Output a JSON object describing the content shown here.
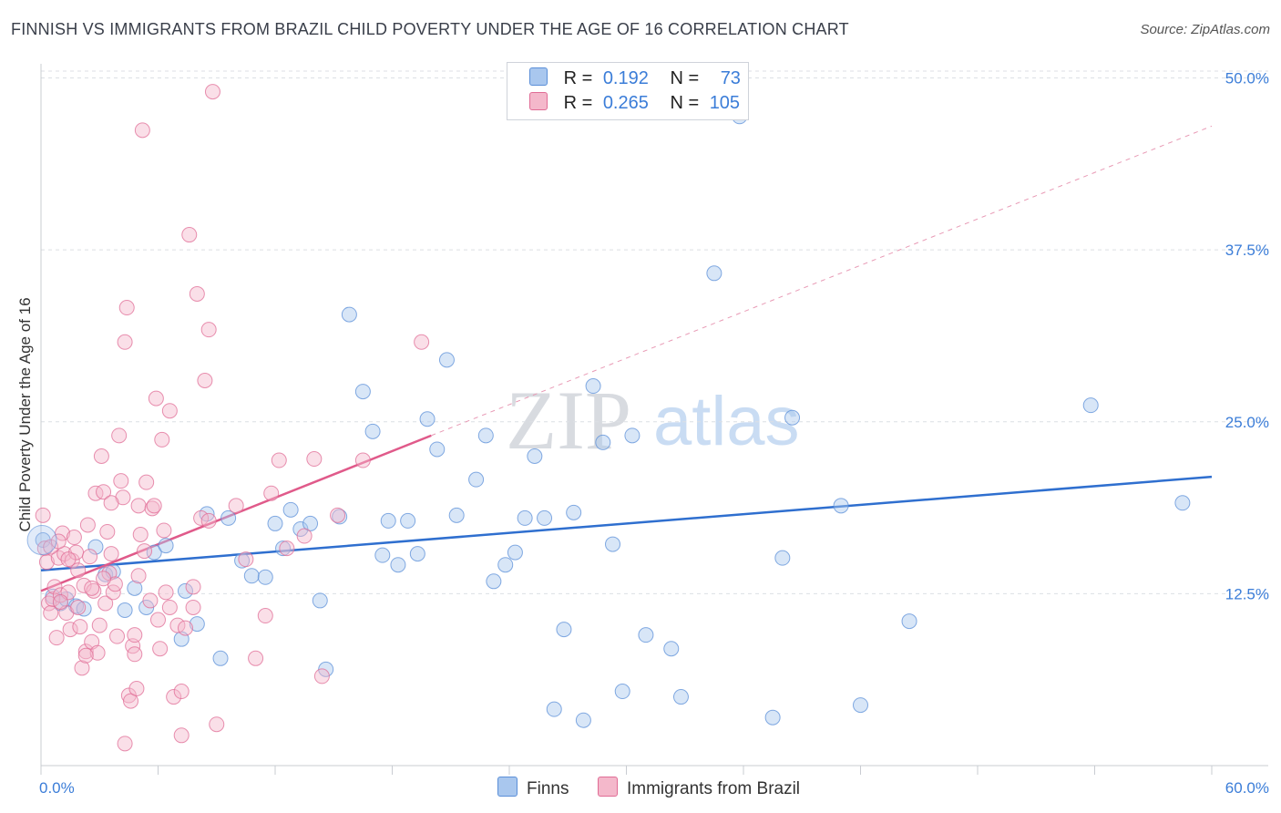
{
  "title": "FINNISH VS IMMIGRANTS FROM BRAZIL CHILD POVERTY UNDER THE AGE OF 16 CORRELATION CHART",
  "source": "Source: ZipAtlas.com",
  "legend": {
    "finns": {
      "r_label": "R =",
      "r_value": "0.192",
      "n_label": "N =",
      "n_value": "73"
    },
    "brazil": {
      "r_label": "R =",
      "r_value": "0.265",
      "n_label": "N =",
      "n_value": "105"
    }
  },
  "bottom_legend": {
    "finns": "Finns",
    "brazil": "Immigrants from Brazil"
  },
  "watermark": {
    "zip": "ZIP",
    "atlas": "atlas"
  },
  "colors": {
    "finns": "#5b8fd8",
    "finns_fill": "#a9c7ee",
    "brazil": "#e06c95",
    "brazil_fill": "#f4b8cb",
    "accent": "#3b7dd8"
  },
  "chart_data": {
    "type": "scatter",
    "title": "FINNISH VS IMMIGRANTS FROM BRAZIL CHILD POVERTY UNDER THE AGE OF 16 CORRELATION CHART",
    "xlabel": "",
    "ylabel": "Child Poverty Under the Age of 16",
    "xlim": [
      0,
      60
    ],
    "ylim": [
      0,
      50.5
    ],
    "x_tick_labels": [
      "0.0%",
      "60.0%"
    ],
    "y_ticks": [
      12.5,
      25.0,
      37.5,
      50.0
    ],
    "y_tick_labels": [
      "12.5%",
      "25.0%",
      "37.5%",
      "50.0%"
    ],
    "grid": true,
    "series": [
      {
        "name": "Finns",
        "trend": {
          "x": [
            0,
            60
          ],
          "y": [
            14.2,
            21.0
          ],
          "dashed_extension": false
        },
        "points": [
          [
            0.1,
            16.4
          ],
          [
            0.6,
            12.3
          ],
          [
            1.0,
            11.8
          ],
          [
            1.3,
            12.1
          ],
          [
            1.8,
            11.6
          ],
          [
            2.2,
            11.4
          ],
          [
            2.8,
            15.9
          ],
          [
            3.3,
            13.9
          ],
          [
            3.7,
            14.1
          ],
          [
            4.3,
            11.3
          ],
          [
            4.8,
            12.9
          ],
          [
            5.4,
            11.5
          ],
          [
            5.8,
            15.5
          ],
          [
            6.4,
            16.0
          ],
          [
            7.2,
            9.2
          ],
          [
            7.4,
            12.7
          ],
          [
            8.0,
            10.3
          ],
          [
            8.5,
            18.3
          ],
          [
            9.2,
            7.8
          ],
          [
            9.6,
            18.0
          ],
          [
            10.3,
            14.9
          ],
          [
            10.8,
            13.8
          ],
          [
            11.5,
            13.7
          ],
          [
            12.0,
            17.6
          ],
          [
            12.4,
            15.8
          ],
          [
            12.8,
            18.6
          ],
          [
            13.3,
            17.2
          ],
          [
            13.8,
            17.6
          ],
          [
            14.3,
            12.0
          ],
          [
            14.6,
            7.0
          ],
          [
            15.3,
            18.1
          ],
          [
            15.8,
            32.8
          ],
          [
            16.5,
            27.2
          ],
          [
            17.0,
            24.3
          ],
          [
            17.5,
            15.3
          ],
          [
            17.8,
            17.8
          ],
          [
            18.3,
            14.6
          ],
          [
            18.8,
            17.8
          ],
          [
            19.3,
            15.4
          ],
          [
            19.8,
            25.2
          ],
          [
            20.3,
            23.0
          ],
          [
            20.8,
            29.5
          ],
          [
            21.3,
            18.2
          ],
          [
            22.3,
            20.8
          ],
          [
            22.8,
            24.0
          ],
          [
            23.2,
            13.4
          ],
          [
            23.8,
            14.6
          ],
          [
            24.3,
            15.5
          ],
          [
            24.8,
            18.0
          ],
          [
            25.3,
            22.5
          ],
          [
            25.8,
            18.0
          ],
          [
            26.3,
            4.1
          ],
          [
            26.8,
            9.9
          ],
          [
            27.3,
            18.4
          ],
          [
            27.8,
            3.3
          ],
          [
            28.3,
            27.6
          ],
          [
            28.8,
            23.5
          ],
          [
            29.3,
            16.1
          ],
          [
            29.8,
            5.4
          ],
          [
            30.3,
            24.0
          ],
          [
            31.0,
            9.5
          ],
          [
            32.3,
            8.5
          ],
          [
            32.8,
            5.0
          ],
          [
            34.5,
            35.8
          ],
          [
            37.5,
            3.5
          ],
          [
            38.0,
            15.1
          ],
          [
            38.5,
            25.3
          ],
          [
            41.0,
            18.9
          ],
          [
            42.0,
            4.4
          ],
          [
            44.5,
            10.5
          ],
          [
            53.8,
            26.2
          ],
          [
            58.5,
            19.1
          ],
          [
            35.8,
            47.2
          ]
        ]
      },
      {
        "name": "Immigrants from Brazil",
        "trend": {
          "x": [
            0,
            20
          ],
          "y": [
            12.7,
            24.0
          ],
          "dashed_extension": {
            "x": [
              20,
              60
            ],
            "y": [
              24.0,
              46.5
            ]
          }
        },
        "points": [
          [
            0.1,
            18.2
          ],
          [
            0.2,
            15.8
          ],
          [
            0.3,
            14.8
          ],
          [
            0.4,
            11.8
          ],
          [
            0.5,
            11.1
          ],
          [
            0.6,
            12.1
          ],
          [
            0.7,
            13.0
          ],
          [
            0.8,
            9.3
          ],
          [
            0.9,
            15.1
          ],
          [
            1.0,
            12.4
          ],
          [
            1.1,
            16.9
          ],
          [
            1.2,
            15.4
          ],
          [
            1.3,
            11.1
          ],
          [
            1.4,
            12.6
          ],
          [
            1.5,
            9.9
          ],
          [
            1.6,
            14.9
          ],
          [
            1.7,
            16.6
          ],
          [
            1.8,
            15.5
          ],
          [
            1.9,
            11.5
          ],
          [
            2.0,
            10.1
          ],
          [
            2.1,
            7.1
          ],
          [
            2.2,
            13.1
          ],
          [
            2.3,
            8.3
          ],
          [
            2.4,
            17.5
          ],
          [
            2.5,
            15.2
          ],
          [
            2.6,
            9.0
          ],
          [
            2.7,
            12.7
          ],
          [
            2.8,
            19.8
          ],
          [
            2.9,
            8.2
          ],
          [
            3.0,
            10.2
          ],
          [
            3.1,
            22.5
          ],
          [
            3.2,
            19.9
          ],
          [
            3.3,
            11.8
          ],
          [
            3.4,
            17.0
          ],
          [
            3.5,
            14.0
          ],
          [
            3.6,
            15.4
          ],
          [
            3.7,
            12.6
          ],
          [
            3.8,
            13.2
          ],
          [
            3.9,
            9.4
          ],
          [
            4.0,
            24.0
          ],
          [
            4.1,
            20.7
          ],
          [
            4.2,
            19.5
          ],
          [
            4.3,
            30.8
          ],
          [
            4.4,
            33.3
          ],
          [
            4.5,
            5.1
          ],
          [
            4.6,
            4.7
          ],
          [
            4.7,
            8.7
          ],
          [
            4.8,
            8.1
          ],
          [
            4.9,
            5.6
          ],
          [
            5.0,
            18.9
          ],
          [
            5.1,
            16.8
          ],
          [
            5.2,
            46.2
          ],
          [
            5.3,
            15.6
          ],
          [
            5.4,
            20.6
          ],
          [
            5.6,
            12.0
          ],
          [
            5.7,
            18.7
          ],
          [
            5.8,
            18.9
          ],
          [
            5.9,
            26.7
          ],
          [
            6.0,
            10.6
          ],
          [
            6.1,
            8.5
          ],
          [
            6.2,
            23.7
          ],
          [
            6.3,
            17.1
          ],
          [
            6.4,
            12.6
          ],
          [
            6.6,
            25.8
          ],
          [
            6.8,
            5.0
          ],
          [
            7.0,
            10.2
          ],
          [
            7.2,
            5.4
          ],
          [
            7.4,
            10.0
          ],
          [
            7.6,
            38.6
          ],
          [
            7.8,
            11.5
          ],
          [
            8.0,
            34.3
          ],
          [
            8.2,
            18.0
          ],
          [
            8.4,
            28.0
          ],
          [
            8.6,
            17.8
          ],
          [
            8.8,
            49.0
          ],
          [
            9.0,
            3.0
          ],
          [
            10.0,
            18.9
          ],
          [
            10.5,
            15.0
          ],
          [
            11.0,
            7.8
          ],
          [
            11.5,
            10.9
          ],
          [
            11.8,
            19.8
          ],
          [
            12.2,
            22.2
          ],
          [
            12.6,
            15.8
          ],
          [
            13.5,
            16.7
          ],
          [
            14.0,
            22.3
          ],
          [
            14.4,
            6.5
          ],
          [
            15.2,
            18.2
          ],
          [
            16.5,
            22.2
          ],
          [
            19.5,
            30.8
          ],
          [
            8.6,
            31.7
          ],
          [
            7.2,
            2.2
          ],
          [
            4.3,
            1.6
          ],
          [
            1.0,
            11.9
          ],
          [
            0.5,
            15.9
          ],
          [
            3.6,
            19.1
          ],
          [
            2.3,
            8.0
          ],
          [
            1.4,
            15.0
          ],
          [
            6.6,
            11.5
          ],
          [
            5.0,
            13.8
          ],
          [
            3.2,
            13.6
          ],
          [
            4.8,
            9.5
          ],
          [
            2.6,
            12.9
          ],
          [
            1.9,
            14.2
          ],
          [
            7.8,
            13.0
          ],
          [
            0.9,
            16.3
          ]
        ]
      }
    ]
  }
}
